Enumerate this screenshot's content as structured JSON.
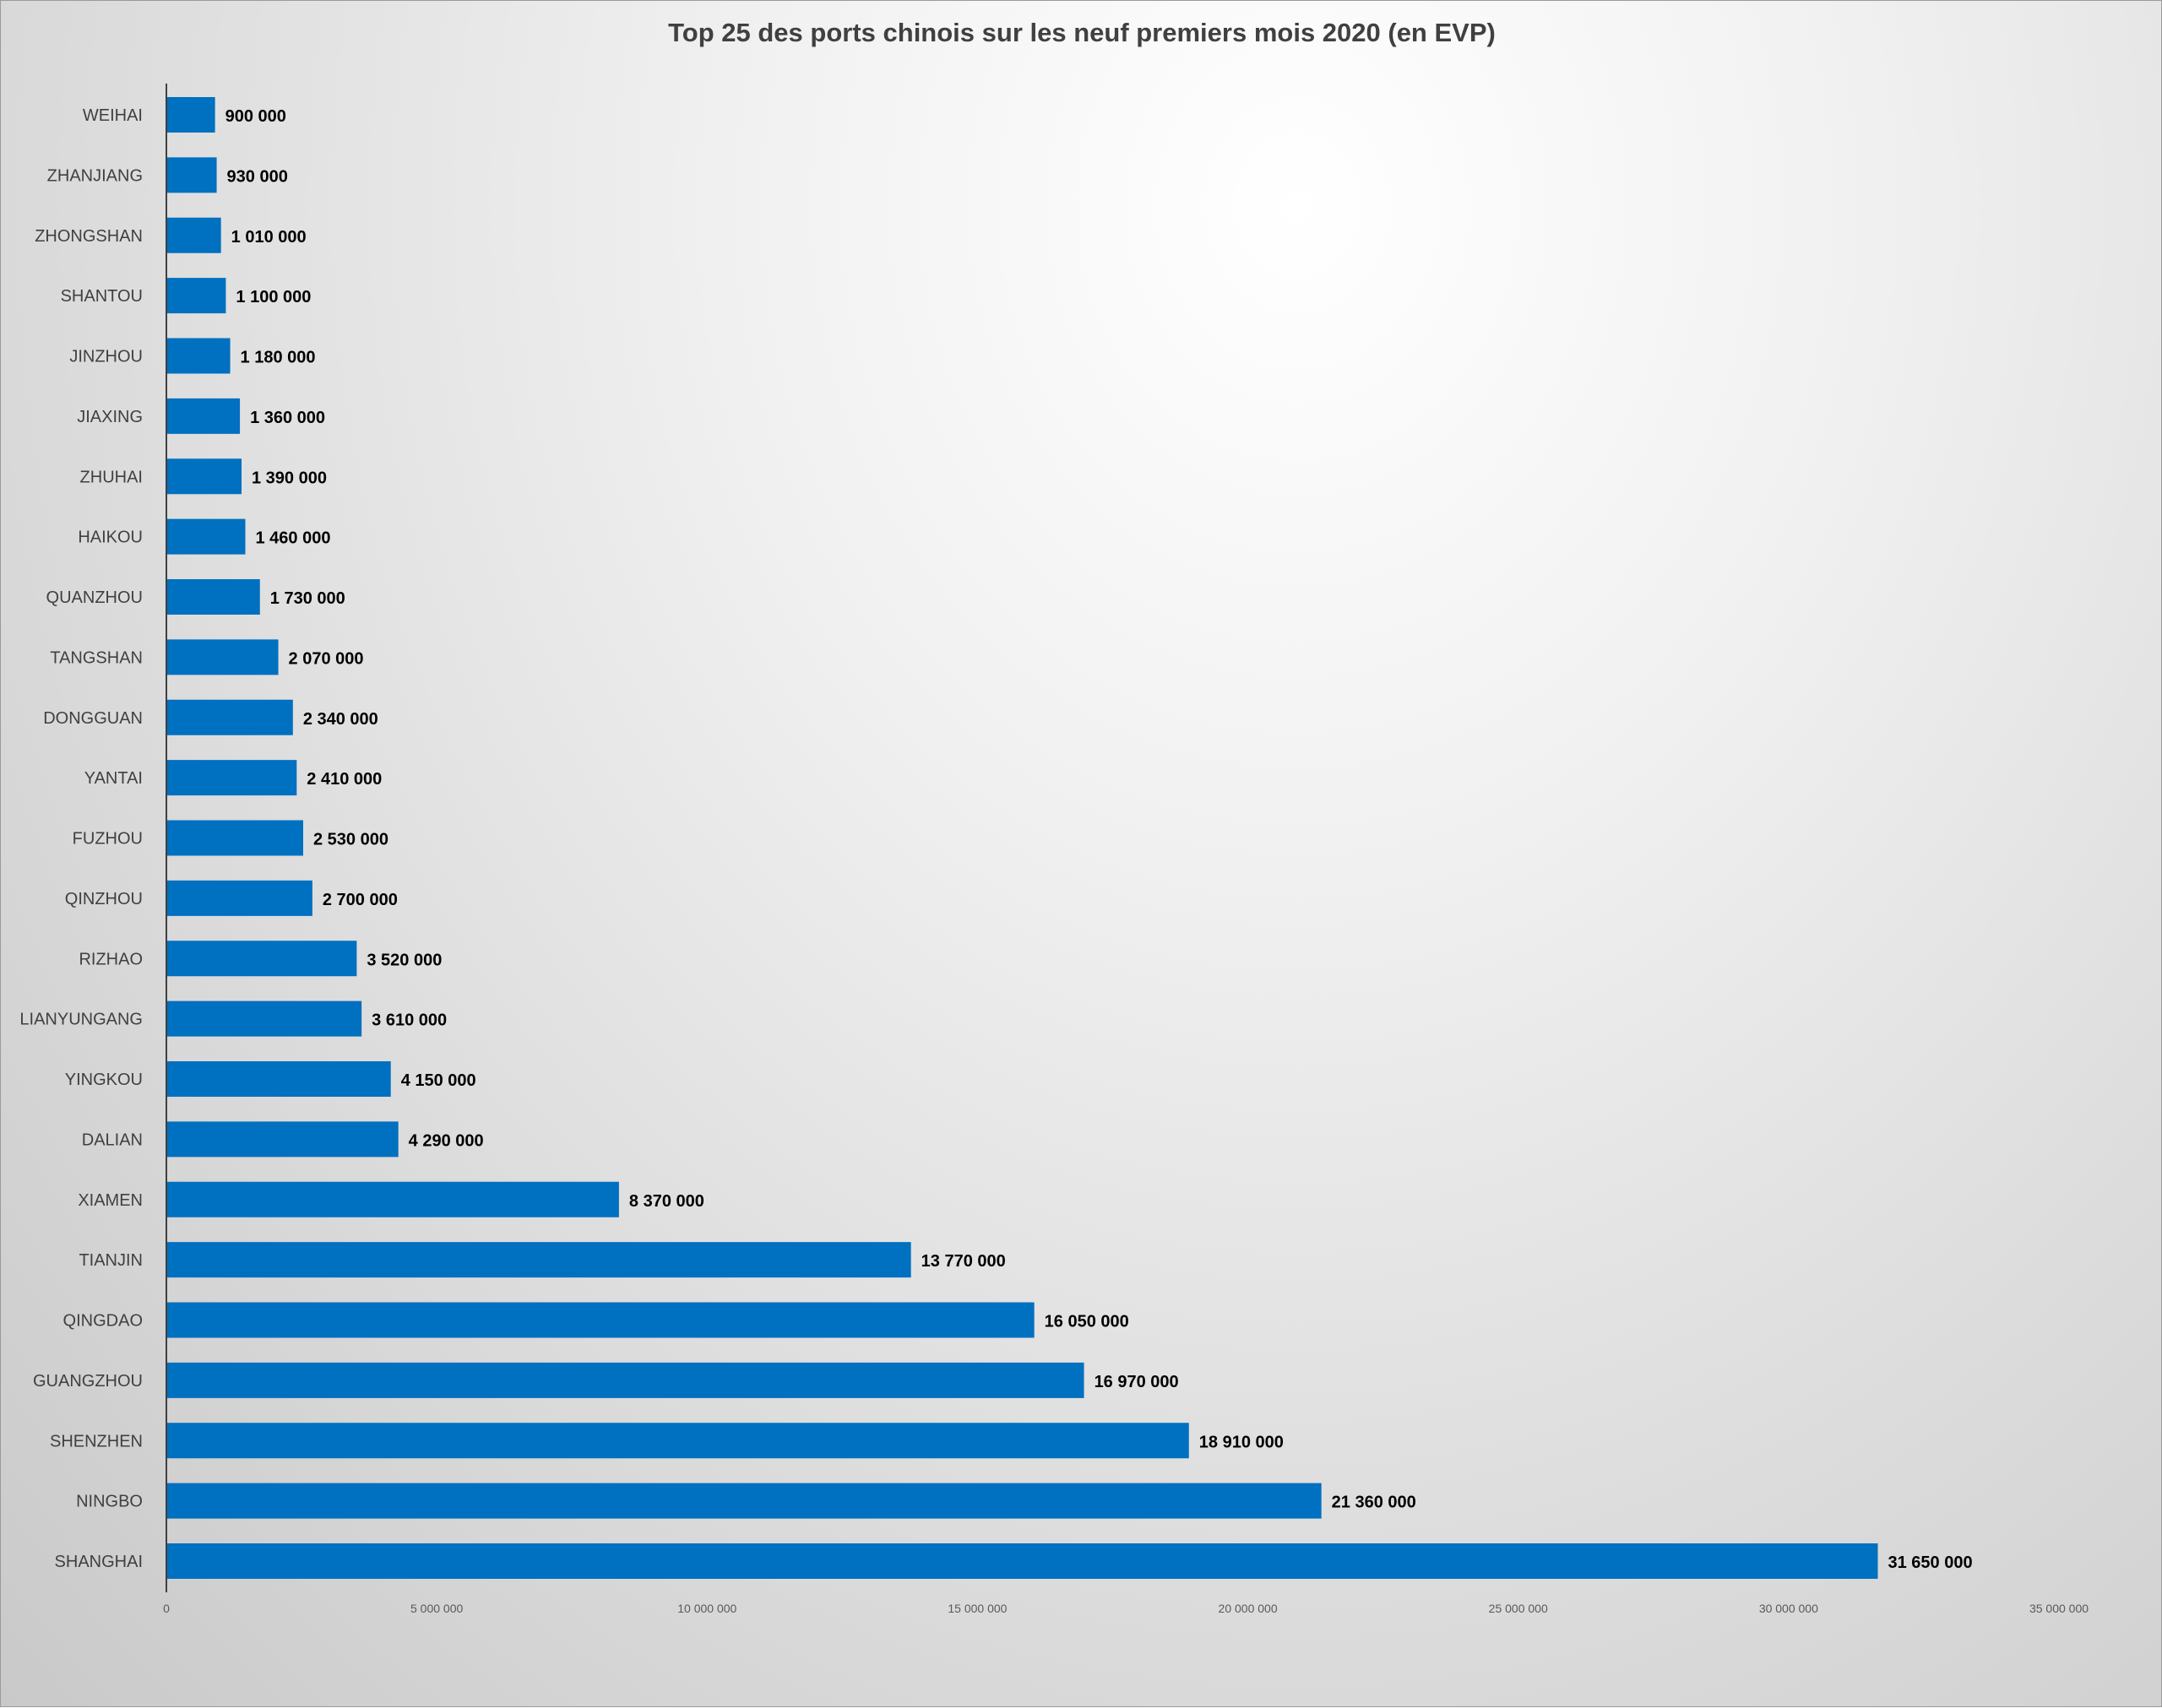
{
  "chart_data": {
    "type": "bar",
    "orientation": "horizontal",
    "title": "Top 25 des ports chinois sur les neuf premiers mois 2020 (en EVP)",
    "xlabel": "",
    "ylabel": "",
    "categories": [
      "WEIHAI",
      "ZHANJIANG",
      "ZHONGSHAN",
      "SHANTOU",
      "JINZHOU",
      "JIAXING",
      "ZHUHAI",
      "HAIKOU",
      "QUANZHOU",
      "TANGSHAN",
      "DONGGUAN",
      "YANTAI",
      "FUZHOU",
      "QINZHOU",
      "RIZHAO",
      "LIANYUNGANG",
      "YINGKOU",
      "DALIAN",
      "XIAMEN",
      "TIANJIN",
      "QINGDAO",
      "GUANGZHOU",
      "SHENZHEN",
      "NINGBO",
      "SHANGHAI"
    ],
    "values": [
      900000,
      930000,
      1010000,
      1100000,
      1180000,
      1360000,
      1390000,
      1460000,
      1730000,
      2070000,
      2340000,
      2410000,
      2530000,
      2700000,
      3520000,
      3610000,
      4150000,
      4290000,
      8370000,
      13770000,
      16050000,
      16970000,
      18910000,
      21360000,
      31650000
    ],
    "value_labels": [
      "900 000",
      "930 000",
      "1 010 000",
      "1 100 000",
      "1 180 000",
      "1 360 000",
      "1 390 000",
      "1 460 000",
      "1 730 000",
      "2 070 000",
      "2 340 000",
      "2 410 000",
      "2 530 000",
      "2 700 000",
      "3 520 000",
      "3 610 000",
      "4 150 000",
      "4 290 000",
      "8 370 000",
      "13 770 000",
      "16 050 000",
      "16 970 000",
      "18 910 000",
      "21 360 000",
      "31 650 000"
    ],
    "xlim": [
      0,
      35000000
    ],
    "x_ticks": [
      0,
      5000000,
      10000000,
      15000000,
      20000000,
      25000000,
      30000000,
      35000000
    ],
    "x_tick_labels": [
      "0",
      "5 000 000",
      "10 000 000",
      "15 000 000",
      "20 000 000",
      "25 000 000",
      "30 000 000",
      "35 000 000"
    ],
    "grid": false,
    "legend": "none",
    "bar_color": "#0070C0"
  }
}
